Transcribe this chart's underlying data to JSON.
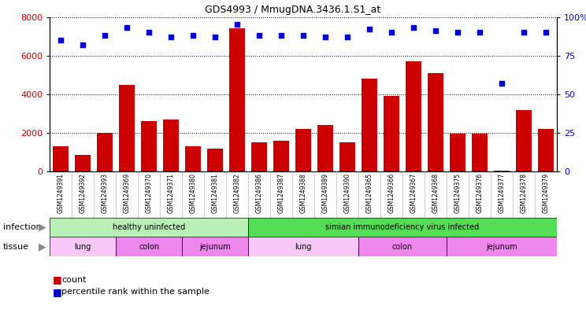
{
  "title": "GDS4993 / MmugDNA.3436.1.S1_at",
  "samples": [
    "GSM1249391",
    "GSM1249392",
    "GSM1249393",
    "GSM1249369",
    "GSM1249370",
    "GSM1249371",
    "GSM1249380",
    "GSM1249381",
    "GSM1249382",
    "GSM1249386",
    "GSM1249387",
    "GSM1249388",
    "GSM1249389",
    "GSM1249390",
    "GSM1249365",
    "GSM1249366",
    "GSM1249367",
    "GSM1249368",
    "GSM1249375",
    "GSM1249376",
    "GSM1249377",
    "GSM1249378",
    "GSM1249379"
  ],
  "counts": [
    1300,
    850,
    2000,
    4500,
    2600,
    2700,
    1300,
    1200,
    7400,
    1500,
    1600,
    2200,
    2400,
    1500,
    4800,
    3900,
    5700,
    5100,
    1950,
    1950,
    50,
    3200,
    2200
  ],
  "percentiles": [
    85,
    82,
    88,
    93,
    90,
    87,
    88,
    87,
    95,
    88,
    88,
    88,
    87,
    87,
    92,
    90,
    93,
    91,
    90,
    90,
    57,
    90,
    90
  ],
  "bar_color": "#cc0000",
  "dot_color": "#0000cc",
  "ylim_left": [
    0,
    8000
  ],
  "ylim_right": [
    0,
    100
  ],
  "yticks_left": [
    0,
    2000,
    4000,
    6000,
    8000
  ],
  "yticks_right": [
    0,
    25,
    50,
    75,
    100
  ],
  "ytick_right_labels": [
    "0",
    "25",
    "50",
    "75",
    "100%"
  ],
  "infection_groups": [
    {
      "label": "healthy uninfected",
      "start": 0,
      "end": 9,
      "color": "#b8f0b8"
    },
    {
      "label": "simian immunodeficiency virus infected",
      "start": 9,
      "end": 23,
      "color": "#55dd55"
    }
  ],
  "tissue_groups": [
    {
      "label": "lung",
      "start": 0,
      "end": 3,
      "color": "#f8c8f8"
    },
    {
      "label": "colon",
      "start": 3,
      "end": 6,
      "color": "#ee88ee"
    },
    {
      "label": "jejunum",
      "start": 6,
      "end": 9,
      "color": "#ee88ee"
    },
    {
      "label": "lung",
      "start": 9,
      "end": 14,
      "color": "#f8c8f8"
    },
    {
      "label": "colon",
      "start": 14,
      "end": 18,
      "color": "#ee88ee"
    },
    {
      "label": "jejunum",
      "start": 18,
      "end": 23,
      "color": "#ee88ee"
    }
  ],
  "infection_row_label": "infection",
  "tissue_row_label": "tissue",
  "legend_count_label": "count",
  "legend_percentile_label": "percentile rank within the sample",
  "plot_bg_color": "#ffffff",
  "fig_bg_color": "#ffffff",
  "xtick_bg_color": "#d8d8d8"
}
